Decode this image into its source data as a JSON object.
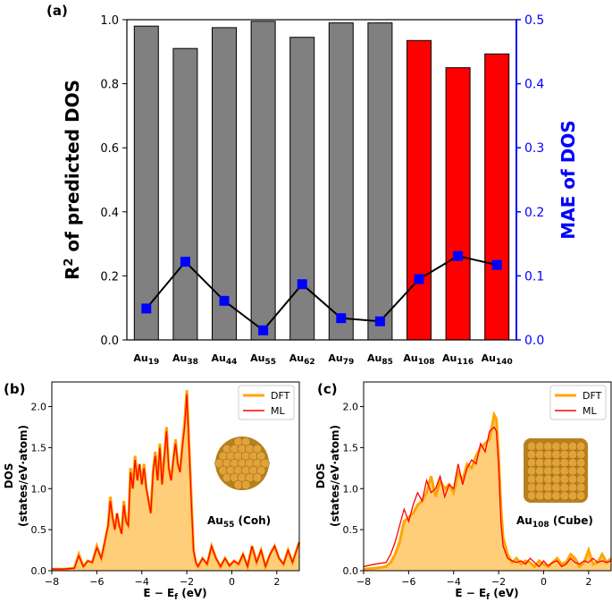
{
  "colors": {
    "bar_small": "#808080",
    "bar_large": "#ff0000",
    "mae": "#0000ff",
    "dft": "#ffa500",
    "dft_fill": "#ffce7a",
    "ml": "#ff0000"
  },
  "chart_data": [
    {
      "type": "bar",
      "panel": "(a)",
      "categories": [
        "Au19",
        "Au38",
        "Au44",
        "Au55",
        "Au62",
        "Au79",
        "Au85",
        "Au108",
        "Au116",
        "Au140"
      ],
      "category_labels": [
        {
          "base": "Au",
          "sub": "19"
        },
        {
          "base": "Au",
          "sub": "38"
        },
        {
          "base": "Au",
          "sub": "44"
        },
        {
          "base": "Au",
          "sub": "55"
        },
        {
          "base": "Au",
          "sub": "62"
        },
        {
          "base": "Au",
          "sub": "79"
        },
        {
          "base": "Au",
          "sub": "85"
        },
        {
          "base": "Au",
          "sub": "108"
        },
        {
          "base": "Au",
          "sub": "116"
        },
        {
          "base": "Au",
          "sub": "140"
        }
      ],
      "series": [
        {
          "name": "R2 of predicted DOS",
          "axis": "left",
          "kind": "bar",
          "values": [
            0.98,
            0.91,
            0.975,
            0.995,
            0.945,
            0.99,
            0.99,
            0.935,
            0.85,
            0.893
          ]
        },
        {
          "name": "MAE of DOS",
          "axis": "right",
          "kind": "line-square",
          "values": [
            0.049,
            0.122,
            0.061,
            0.015,
            0.087,
            0.034,
            0.029,
            0.095,
            0.131,
            0.117
          ]
        }
      ],
      "bar_group_split": 7,
      "ylabel_left": {
        "base": "R",
        "sup": "2",
        "rest": " of predicted DOS"
      },
      "ylabel_right": "MAE of DOS",
      "ylim_left": [
        0,
        1.0
      ],
      "ylim_right": [
        0,
        0.5
      ],
      "yticks_left": [
        "0.0",
        "0.2",
        "0.4",
        "0.6",
        "0.8",
        "1.0"
      ],
      "yticks_right": [
        "0.0",
        "0.1",
        "0.2",
        "0.3",
        "0.4",
        "0.5"
      ]
    },
    {
      "type": "area",
      "panel": "(b)",
      "xlim": [
        -8,
        3
      ],
      "ylim": [
        0,
        2.3
      ],
      "xticks": [
        "−8",
        "−6",
        "−4",
        "−2",
        "0",
        "2"
      ],
      "yticks": [
        "0.0",
        "0.5",
        "1.0",
        "1.5",
        "2.0"
      ],
      "ylabel_line1": "DOS",
      "ylabel_line2": "(states/eV·atom)",
      "xlabel": {
        "base": "E − E",
        "sub": "f",
        "rest": " (eV)"
      },
      "cluster_label": {
        "base": "Au",
        "sub": "55",
        "rest": " (Coh)"
      },
      "legend": [
        "DFT",
        "ML"
      ],
      "x": [
        -8,
        -7.5,
        -7,
        -6.8,
        -6.6,
        -6.4,
        -6.2,
        -6,
        -5.8,
        -5.6,
        -5.5,
        -5.4,
        -5.3,
        -5.2,
        -5.1,
        -5,
        -4.9,
        -4.8,
        -4.7,
        -4.6,
        -4.5,
        -4.4,
        -4.3,
        -4.2,
        -4.1,
        -4,
        -3.9,
        -3.8,
        -3.7,
        -3.6,
        -3.5,
        -3.4,
        -3.3,
        -3.2,
        -3.1,
        -3,
        -2.9,
        -2.8,
        -2.7,
        -2.6,
        -2.5,
        -2.4,
        -2.3,
        -2.2,
        -2.1,
        -2,
        -1.9,
        -1.8,
        -1.7,
        -1.6,
        -1.5,
        -1.3,
        -1.1,
        -0.9,
        -0.7,
        -0.5,
        -0.3,
        -0.1,
        0.1,
        0.3,
        0.5,
        0.7,
        0.9,
        1.1,
        1.3,
        1.5,
        1.7,
        1.9,
        2.1,
        2.3,
        2.5,
        2.7,
        3
      ],
      "series": [
        {
          "name": "DFT",
          "values": [
            0.02,
            0.02,
            0.03,
            0.2,
            0.05,
            0.12,
            0.1,
            0.3,
            0.15,
            0.4,
            0.55,
            0.9,
            0.65,
            0.5,
            0.7,
            0.55,
            0.45,
            0.85,
            0.6,
            0.55,
            1.25,
            1.0,
            1.4,
            1.1,
            1.3,
            1.05,
            1.3,
            1.0,
            0.85,
            0.7,
            1.2,
            1.45,
            1.1,
            1.55,
            1.05,
            1.4,
            1.75,
            1.25,
            1.1,
            1.35,
            1.6,
            1.3,
            1.2,
            1.55,
            1.8,
            2.2,
            1.55,
            0.9,
            0.25,
            0.1,
            0.05,
            0.15,
            0.08,
            0.3,
            0.15,
            0.05,
            0.15,
            0.06,
            0.12,
            0.08,
            0.2,
            0.05,
            0.3,
            0.1,
            0.25,
            0.05,
            0.2,
            0.3,
            0.15,
            0.08,
            0.25,
            0.1,
            0.35
          ]
        },
        {
          "name": "ML",
          "values": [
            0.02,
            0.02,
            0.03,
            0.18,
            0.05,
            0.12,
            0.1,
            0.28,
            0.15,
            0.42,
            0.55,
            0.85,
            0.65,
            0.5,
            0.7,
            0.55,
            0.45,
            0.8,
            0.6,
            0.55,
            1.2,
            1.0,
            1.35,
            1.1,
            1.3,
            1.05,
            1.25,
            1.0,
            0.85,
            0.7,
            1.2,
            1.4,
            1.1,
            1.5,
            1.05,
            1.38,
            1.7,
            1.25,
            1.1,
            1.35,
            1.55,
            1.3,
            1.2,
            1.5,
            1.75,
            2.15,
            1.5,
            0.85,
            0.25,
            0.1,
            0.05,
            0.15,
            0.08,
            0.3,
            0.15,
            0.05,
            0.15,
            0.06,
            0.12,
            0.08,
            0.2,
            0.05,
            0.3,
            0.1,
            0.25,
            0.05,
            0.2,
            0.3,
            0.15,
            0.08,
            0.25,
            0.1,
            0.35
          ]
        }
      ]
    },
    {
      "type": "area",
      "panel": "(c)",
      "xlim": [
        -8,
        3
      ],
      "ylim": [
        0,
        2.3
      ],
      "xticks": [
        "−8",
        "−6",
        "−4",
        "−2",
        "0",
        "2"
      ],
      "yticks": [
        "0.0",
        "0.5",
        "1.0",
        "1.5",
        "2.0"
      ],
      "ylabel_line1": "DOS",
      "ylabel_line2": "(states/eV·atom)",
      "xlabel": {
        "base": "E − E",
        "sub": "f",
        "rest": " (eV)"
      },
      "cluster_label": {
        "base": "Au",
        "sub": "108",
        "rest": " (Cube)"
      },
      "legend": [
        "DFT",
        "ML"
      ],
      "x": [
        -8,
        -7.5,
        -7,
        -6.8,
        -6.6,
        -6.4,
        -6.2,
        -6,
        -5.8,
        -5.6,
        -5.4,
        -5.2,
        -5,
        -4.8,
        -4.6,
        -4.4,
        -4.2,
        -4,
        -3.8,
        -3.6,
        -3.4,
        -3.2,
        -3,
        -2.8,
        -2.6,
        -2.4,
        -2.2,
        -2.1,
        -2,
        -1.9,
        -1.8,
        -1.6,
        -1.4,
        -1.2,
        -1,
        -0.8,
        -0.6,
        -0.4,
        -0.2,
        0,
        0.2,
        0.4,
        0.6,
        0.8,
        1,
        1.2,
        1.4,
        1.6,
        1.8,
        2,
        2.2,
        2.4,
        2.6,
        2.8,
        3
      ],
      "series": [
        {
          "name": "DFT",
          "values": [
            0.02,
            0.03,
            0.05,
            0.1,
            0.2,
            0.35,
            0.6,
            0.65,
            0.7,
            0.8,
            0.85,
            0.95,
            1.15,
            0.9,
            1.1,
            1.0,
            1.05,
            0.95,
            1.2,
            1.1,
            1.3,
            1.25,
            1.4,
            1.5,
            1.55,
            1.6,
            1.9,
            1.85,
            1.4,
            0.8,
            0.4,
            0.2,
            0.1,
            0.15,
            0.08,
            0.12,
            0.1,
            0.05,
            0.12,
            0.08,
            0.05,
            0.1,
            0.15,
            0.08,
            0.1,
            0.2,
            0.15,
            0.05,
            0.1,
            0.25,
            0.08,
            0.1,
            0.2,
            0.1,
            0.15
          ]
        },
        {
          "name": "ML",
          "values": [
            0.05,
            0.08,
            0.1,
            0.2,
            0.35,
            0.55,
            0.75,
            0.6,
            0.8,
            0.95,
            0.85,
            1.1,
            0.95,
            1.0,
            1.15,
            0.9,
            1.05,
            1.0,
            1.3,
            1.05,
            1.25,
            1.35,
            1.3,
            1.55,
            1.45,
            1.7,
            1.75,
            1.7,
            1.3,
            0.6,
            0.3,
            0.15,
            0.12,
            0.1,
            0.12,
            0.08,
            0.15,
            0.1,
            0.05,
            0.12,
            0.06,
            0.1,
            0.12,
            0.05,
            0.08,
            0.15,
            0.1,
            0.08,
            0.12,
            0.1,
            0.15,
            0.1,
            0.12,
            0.1,
            0.12
          ]
        }
      ]
    }
  ]
}
